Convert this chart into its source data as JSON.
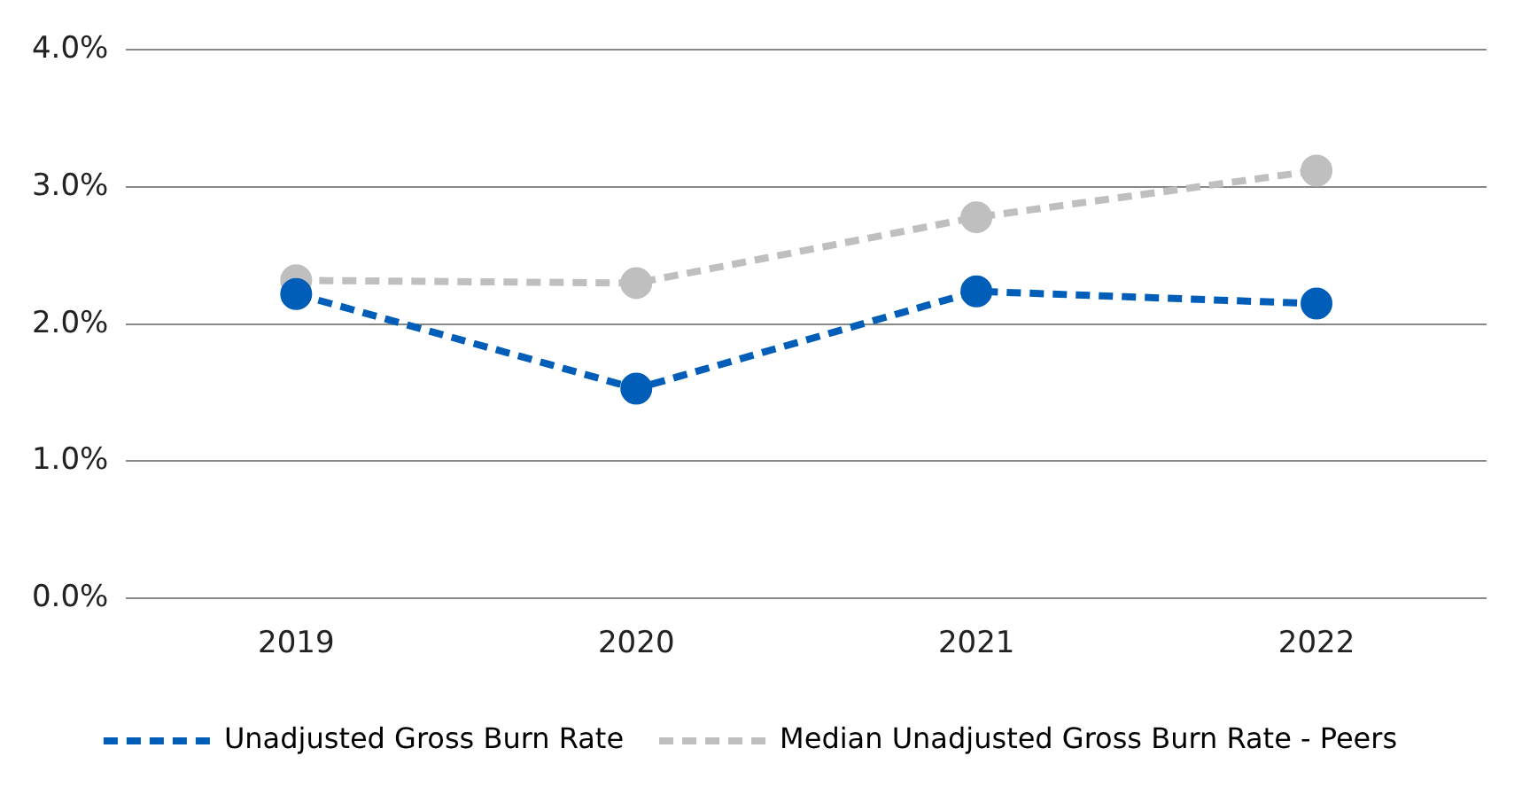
{
  "chart_data": {
    "type": "line",
    "categories": [
      "2019",
      "2020",
      "2021",
      "2022"
    ],
    "series": [
      {
        "name": "Unadjusted Gross Burn Rate",
        "color": "#005eb8",
        "values": [
          2.22,
          1.53,
          2.24,
          2.15
        ]
      },
      {
        "name": "Median Unadjusted Gross Burn Rate - Peers",
        "color": "#bfbfbf",
        "values": [
          2.32,
          2.3,
          2.78,
          3.12
        ]
      }
    ],
    "ylim": [
      0,
      4
    ],
    "yticks": [
      {
        "value": 0,
        "label": "0.0%"
      },
      {
        "value": 1,
        "label": "1.0%"
      },
      {
        "value": 2,
        "label": "2.0%"
      },
      {
        "value": 3,
        "label": "3.0%"
      },
      {
        "value": 4,
        "label": "4.0%"
      }
    ],
    "grid": "y",
    "legend": "bottom",
    "marker": "circle",
    "line_style": "dashed"
  }
}
